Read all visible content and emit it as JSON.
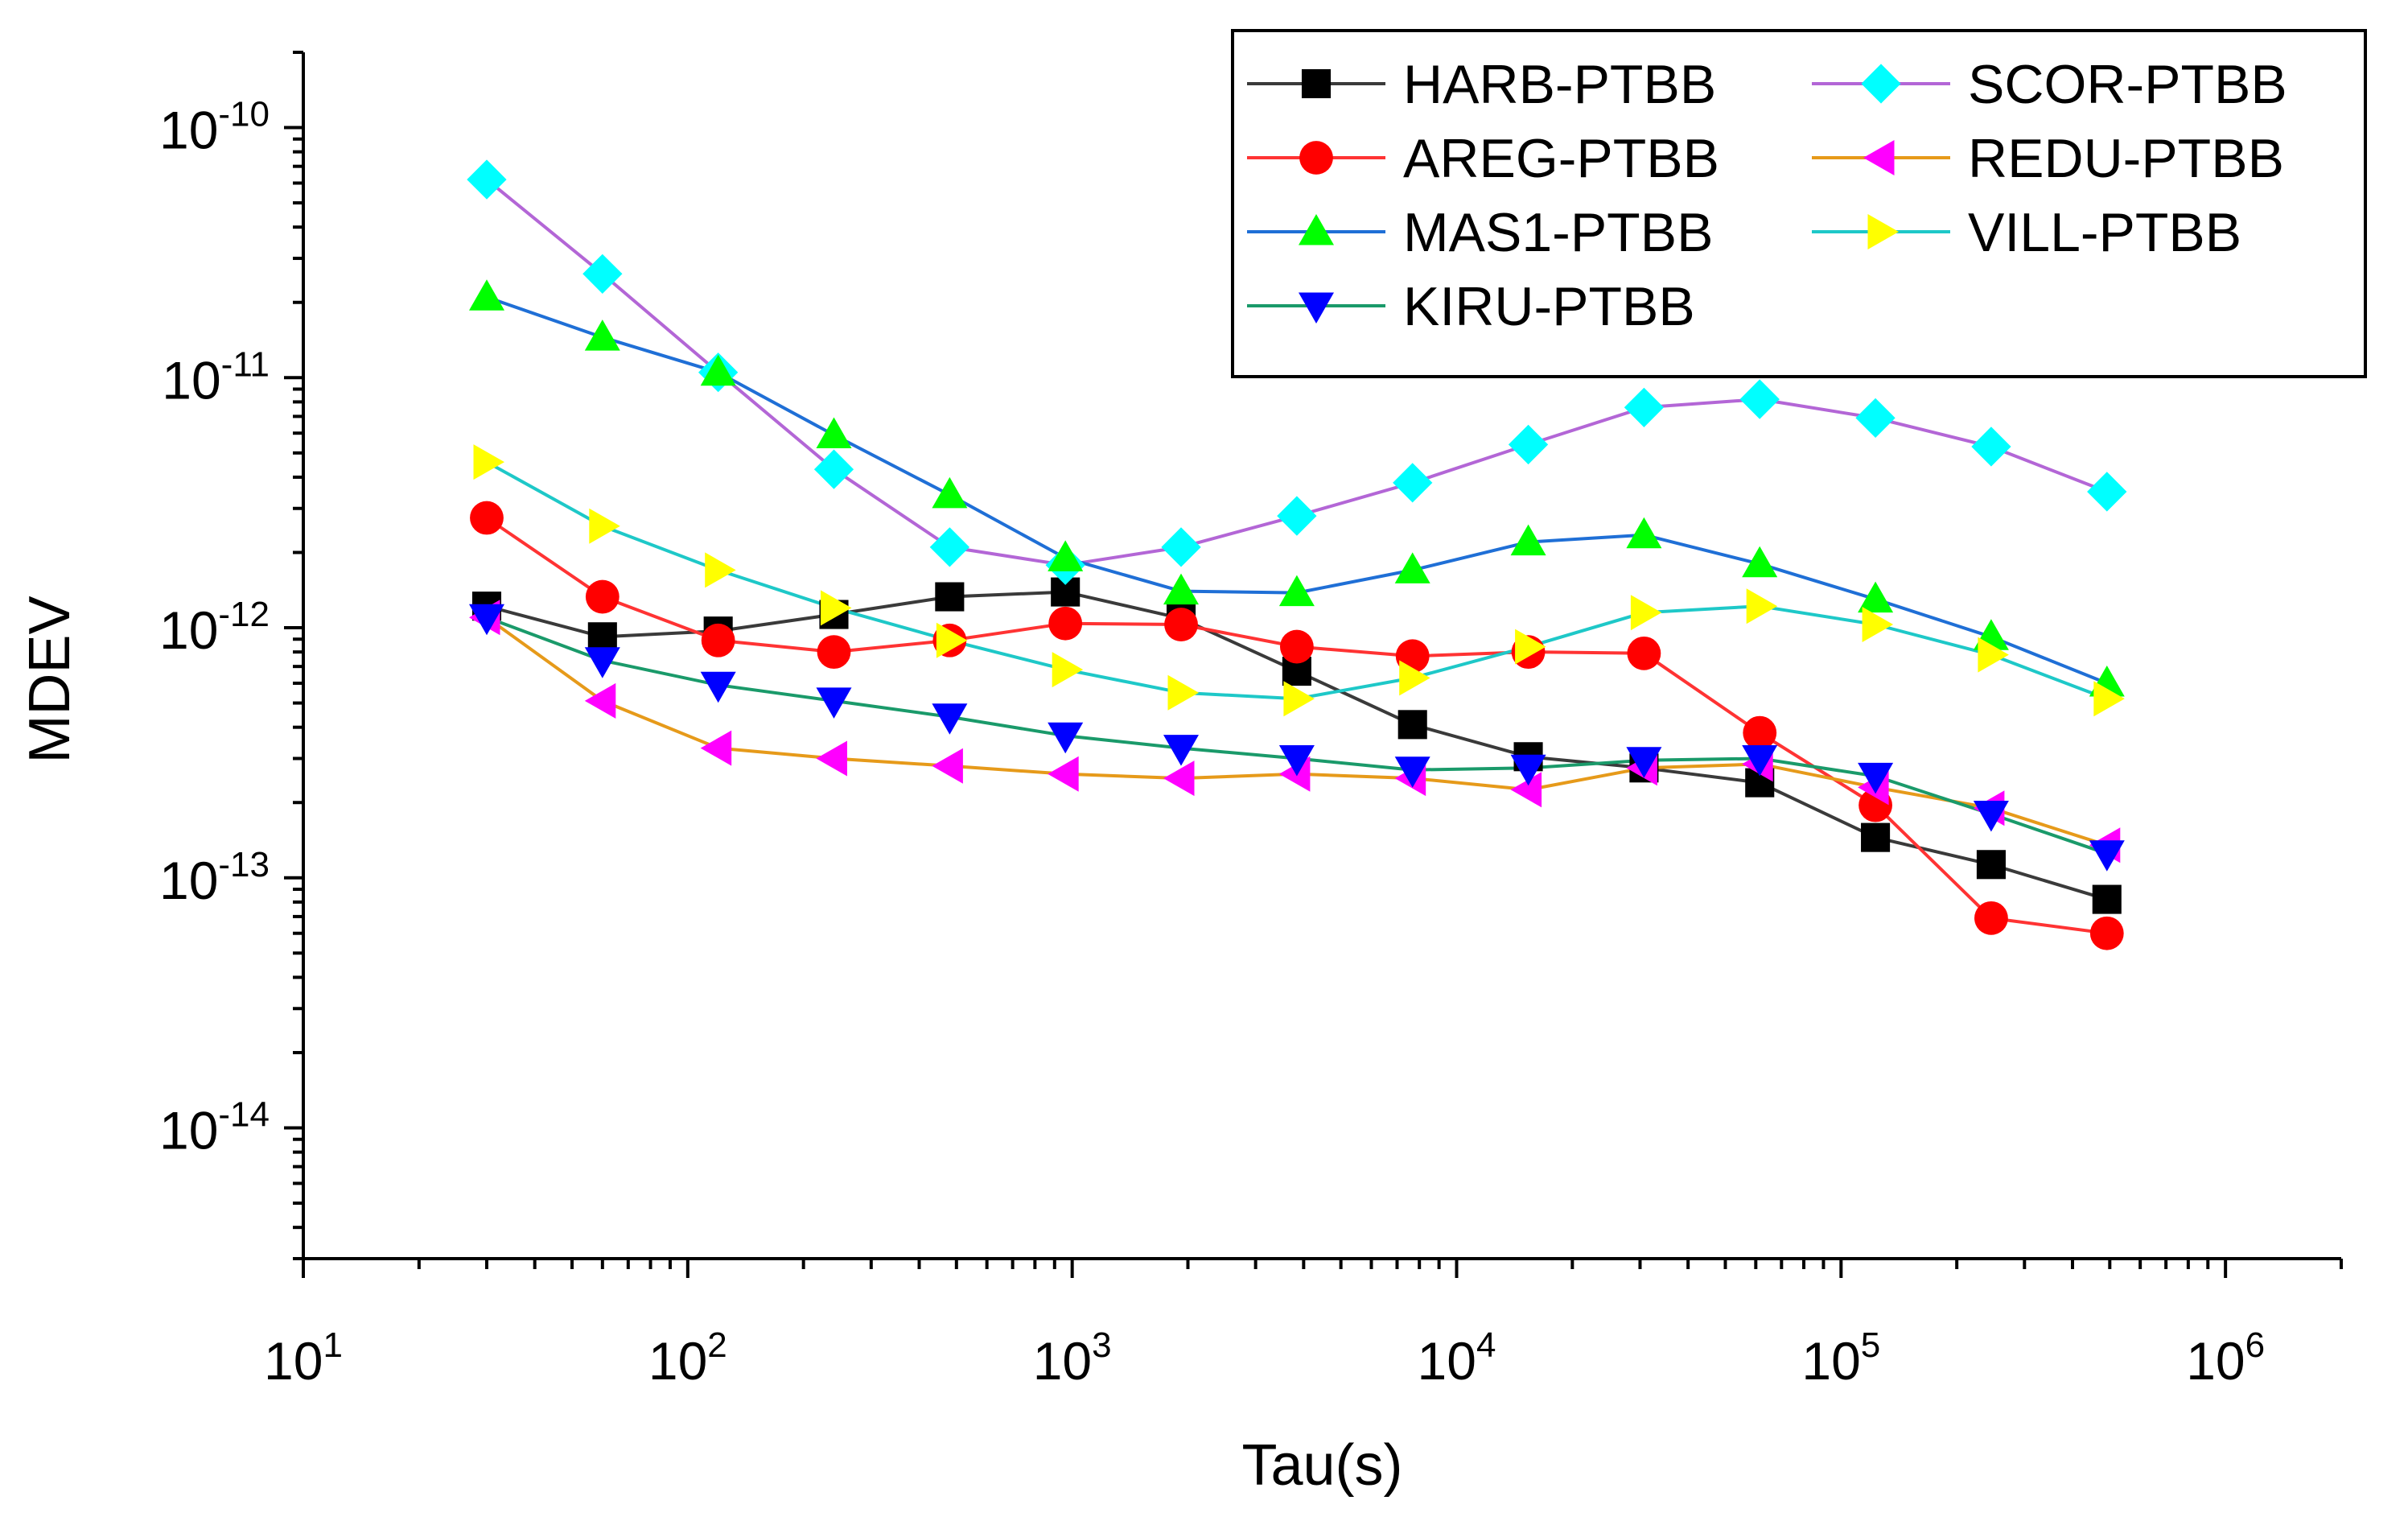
{
  "chart_data": {
    "type": "line",
    "title": "",
    "xlabel": "Tau(s)",
    "ylabel": "MDEV",
    "xscale": "log",
    "yscale": "log",
    "xlim": [
      10,
      2000000
    ],
    "ylim": [
      3e-15,
      2e-10
    ],
    "xtick_values": [
      10,
      100,
      1000,
      10000,
      100000,
      1000000
    ],
    "xtick_labels": [
      {
        "base": "10",
        "exp": "1"
      },
      {
        "base": "10",
        "exp": "2"
      },
      {
        "base": "10",
        "exp": "3"
      },
      {
        "base": "10",
        "exp": "4"
      },
      {
        "base": "10",
        "exp": "5"
      },
      {
        "base": "10",
        "exp": "6"
      }
    ],
    "ytick_values": [
      1e-14,
      1e-13,
      1e-12,
      1e-11,
      1e-10
    ],
    "ytick_labels": [
      {
        "base": "10",
        "exp": "-14"
      },
      {
        "base": "10",
        "exp": "-13"
      },
      {
        "base": "10",
        "exp": "-12"
      },
      {
        "base": "10",
        "exp": "-11"
      },
      {
        "base": "10",
        "exp": "-10"
      }
    ],
    "grid": false,
    "legend_position": "top-right",
    "legend_columns": 2,
    "x": [
      30,
      60,
      120,
      240,
      480,
      960,
      1920,
      3840,
      7680,
      15360,
      30720,
      61440,
      122880,
      245760,
      491520
    ],
    "series": [
      {
        "name": "HARB-PTBB",
        "marker": "square",
        "marker_color": "#000000",
        "line_color": "#3a3a3a",
        "values": [
          1.22e-12,
          9.2e-13,
          9.7e-13,
          1.13e-12,
          1.33e-12,
          1.39e-12,
          1.09e-12,
          6.7e-13,
          4.1e-13,
          3.05e-13,
          2.75e-13,
          2.4e-13,
          1.45e-13,
          1.13e-13,
          8.2e-14
        ]
      },
      {
        "name": "SCOR-PTBB",
        "marker": "diamond",
        "marker_color": "#00ffff",
        "line_color": "#b366d6",
        "values": [
          6.2e-11,
          2.6e-11,
          1.05e-11,
          4.3e-12,
          2.1e-12,
          1.78e-12,
          2.1e-12,
          2.8e-12,
          3.8e-12,
          5.4e-12,
          7.6e-12,
          8.2e-12,
          6.9e-12,
          5.3e-12,
          3.5e-12
        ]
      },
      {
        "name": "AREG-PTBB",
        "marker": "circle",
        "marker_color": "#ff0000",
        "line_color": "#ff3333",
        "values": [
          2.75e-12,
          1.33e-12,
          8.9e-13,
          8e-13,
          8.9e-13,
          1.04e-12,
          1.03e-12,
          8.4e-13,
          7.7e-13,
          8e-13,
          7.9e-13,
          3.8e-13,
          1.95e-13,
          6.9e-14,
          6e-14
        ]
      },
      {
        "name": "REDU-PTBB",
        "marker": "triangle-left",
        "marker_color": "#ff00ff",
        "line_color": "#e69a1a",
        "values": [
          1.1e-12,
          5.1e-13,
          3.3e-13,
          3e-13,
          2.8e-13,
          2.6e-13,
          2.5e-13,
          2.6e-13,
          2.5e-13,
          2.25e-13,
          2.75e-13,
          2.85e-13,
          2.3e-13,
          1.9e-13,
          1.35e-13
        ]
      },
      {
        "name": "MAS1-PTBB",
        "marker": "triangle-up",
        "marker_color": "#00ff00",
        "line_color": "#1f6fd6",
        "values": [
          2.1e-11,
          1.45e-11,
          1.05e-11,
          5.9e-12,
          3.4e-12,
          1.9e-12,
          1.4e-12,
          1.38e-12,
          1.7e-12,
          2.2e-12,
          2.35e-12,
          1.8e-12,
          1.3e-12,
          9.2e-13,
          6e-13
        ]
      },
      {
        "name": "VILL-PTBB",
        "marker": "triangle-right",
        "marker_color": "#ffff00",
        "line_color": "#1ec8c8",
        "values": [
          4.6e-12,
          2.55e-12,
          1.7e-12,
          1.2e-12,
          8.9e-13,
          6.8e-13,
          5.5e-13,
          5.2e-13,
          6.3e-13,
          8.4e-13,
          1.15e-12,
          1.22e-12,
          1.03e-12,
          7.8e-13,
          5.2e-13
        ]
      },
      {
        "name": "KIRU-PTBB",
        "marker": "triangle-down",
        "marker_color": "#0000ff",
        "line_color": "#1a9a6a",
        "values": [
          1.1e-12,
          7.4e-13,
          5.9e-13,
          5.1e-13,
          4.4e-13,
          3.7e-13,
          3.3e-13,
          3e-13,
          2.7e-13,
          2.75e-13,
          2.95e-13,
          3e-13,
          2.55e-13,
          1.8e-13,
          1.25e-13
        ]
      }
    ]
  }
}
